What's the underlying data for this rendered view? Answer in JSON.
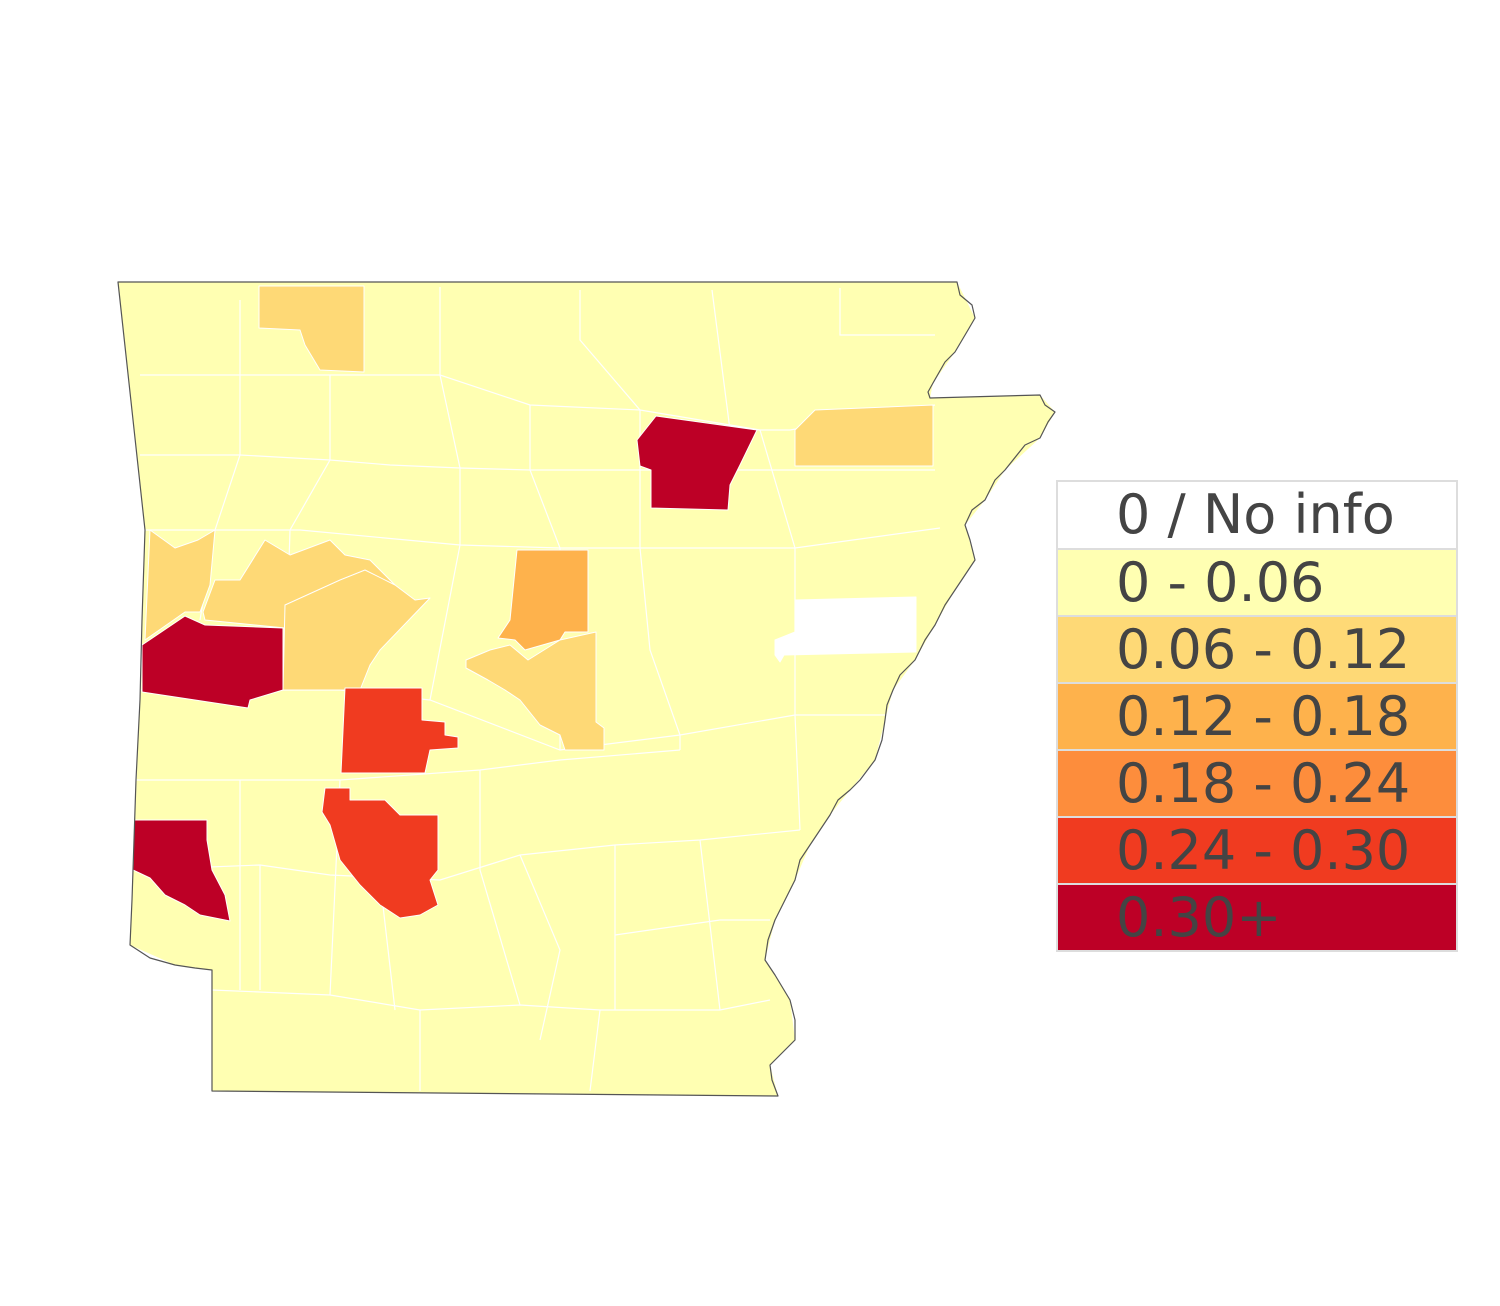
{
  "map": {
    "region": "Arkansas",
    "unit": "county",
    "colors": {
      "no_info": "#ffffff",
      "bin1": "#ffffb2",
      "bin2": "#fed976",
      "bin3": "#feb24c",
      "bin4": "#fd8d3c",
      "bin5": "#f03b20",
      "bin6": "#bd0026",
      "border": "#ffffff",
      "outline": "#555555"
    }
  },
  "legend": {
    "items": [
      {
        "label": "0 / No info",
        "color": "#ffffff"
      },
      {
        "label": "0 - 0.06",
        "color": "#ffffb2"
      },
      {
        "label": "0.06 - 0.12",
        "color": "#fed976"
      },
      {
        "label": "0.12 - 0.18",
        "color": "#feb24c"
      },
      {
        "label": "0.18 - 0.24",
        "color": "#fd8d3c"
      },
      {
        "label": "0.24 - 0.30",
        "color": "#f03b20"
      },
      {
        "label": "0.30+",
        "color": "#bd0026"
      }
    ]
  }
}
